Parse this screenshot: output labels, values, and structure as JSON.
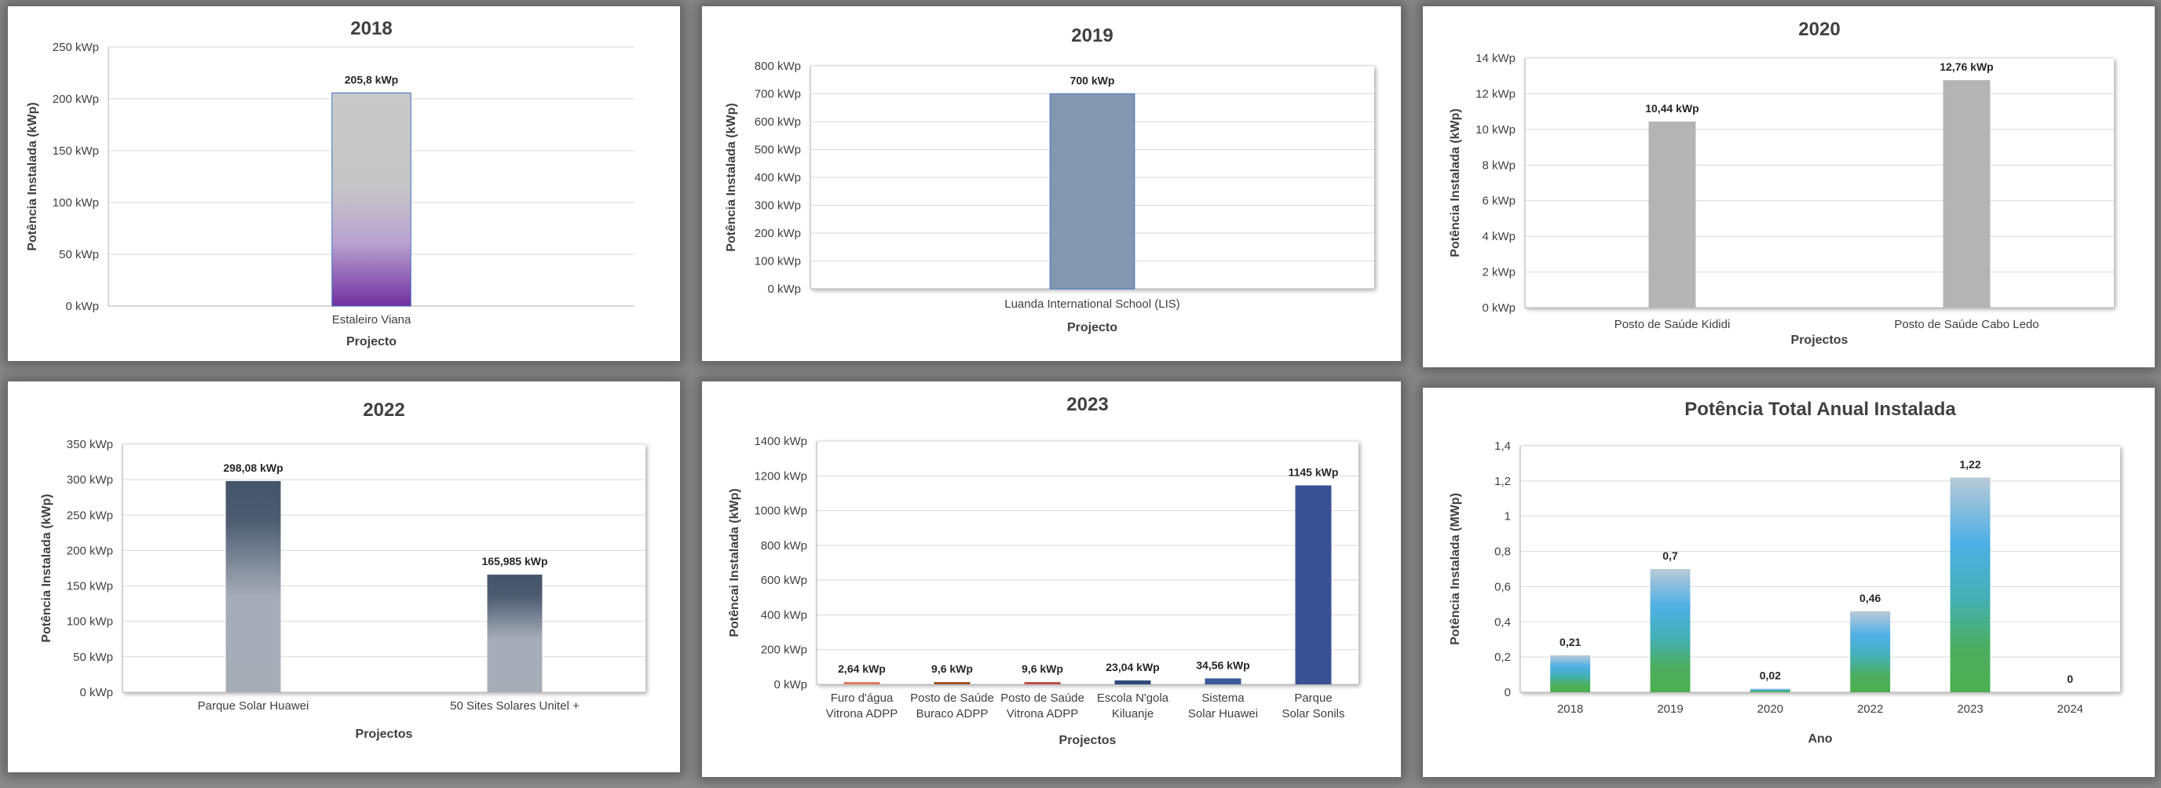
{
  "chart_data": [
    {
      "id": "c2018",
      "type": "bar",
      "title": "2018",
      "xlabel": "Projecto",
      "ylabel": "Potência Instalada (kWp)",
      "categories": [
        "Estaleiro Viana"
      ],
      "values": [
        205.8
      ],
      "value_labels": [
        "205,8 kWp"
      ],
      "ylim": [
        0,
        250
      ],
      "ytick_labels": [
        "0 kWp",
        "50 kWp",
        "100 kWp",
        "150 kWp",
        "200 kWp",
        "250 kWp"
      ],
      "grid": true,
      "plot_frame": false,
      "bar_fill": "grad2018",
      "bar_stroke": "#4472c4"
    },
    {
      "id": "c2019",
      "type": "bar",
      "title": "2019",
      "xlabel": "Projecto",
      "ylabel": "Potência Instalada (kWp)",
      "categories": [
        "Luanda International School (LIS)"
      ],
      "values": [
        700
      ],
      "value_labels": [
        "700 kWp"
      ],
      "ylim": [
        0,
        800
      ],
      "ytick_labels": [
        "0 kWp",
        "100 kWp",
        "200 kWp",
        "300 kWp",
        "400 kWp",
        "500 kWp",
        "600 kWp",
        "700 kWp",
        "800 kWp"
      ],
      "grid": true,
      "plot_frame": true,
      "bar_fill": "#8497b0",
      "bar_stroke": "#4472c4"
    },
    {
      "id": "c2020",
      "type": "bar",
      "title": "2020",
      "xlabel": "Projectos",
      "ylabel": "Potência Instalada (kWp)",
      "categories": [
        "Posto de Saúde Kididi",
        "Posto de Saúde Cabo Ledo"
      ],
      "values": [
        10.44,
        12.76
      ],
      "value_labels": [
        "10,44 kWp",
        "12,76 kWp"
      ],
      "ylim": [
        0,
        14
      ],
      "ytick_labels": [
        "0 kWp",
        "2 kWp",
        "4 kWp",
        "6 kWp",
        "8 kWp",
        "10 kWp",
        "12 kWp",
        "14 kWp"
      ],
      "grid": true,
      "plot_frame": true,
      "bar_fill": "#b4b4b4",
      "bar_stroke": "none"
    },
    {
      "id": "c2022",
      "type": "bar",
      "title": "2022",
      "xlabel": "Projectos",
      "ylabel": "Potência Instalada (kWp)",
      "categories": [
        "Parque Solar Huawei",
        "50 Sites Solares Unitel +"
      ],
      "values": [
        298.08,
        165.985
      ],
      "value_labels": [
        "298,08 kWp",
        "165,985 kWp"
      ],
      "ylim": [
        0,
        350
      ],
      "ytick_labels": [
        "0 kWp",
        "50 kWp",
        "100 kWp",
        "150 kWp",
        "200 kWp",
        "250 kWp",
        "300 kWp",
        "350 kWp"
      ],
      "grid": true,
      "plot_frame": true,
      "bar_fill": "grad2022",
      "bar_stroke": "none"
    },
    {
      "id": "c2023",
      "type": "bar",
      "title": "2023",
      "xlabel": "Projectos",
      "ylabel": "Potêncai Instalada (kWp)",
      "categories": [
        "Furo d'água Vitrona ADPP",
        "Posto de Saúde Buraco ADPP",
        "Posto de Saúde Vitrona ADPP",
        "Escola N'gola Kiluanje",
        "Sistema Solar Huawei",
        "Parque Solar Sonils"
      ],
      "values": [
        2.64,
        9.6,
        9.6,
        23.04,
        34.56,
        1145
      ],
      "value_labels": [
        "2,64 kWp",
        "9,6 kWp",
        "9,6 kWp",
        "23,04 kWp",
        "34,56 kWp",
        "1145 kWp"
      ],
      "ylim": [
        0,
        1400
      ],
      "ytick_labels": [
        "0 kWp",
        "200 kWp",
        "400 kWp",
        "600 kWp",
        "800 kWp",
        "1000 kWp",
        "1200 kWp",
        "1400 kWp"
      ],
      "grid": true,
      "plot_frame": true,
      "bar_fills": [
        "#e07b5f",
        "#a0522d",
        "#c0504d",
        "#2f4b7c",
        "#3a5a9a",
        "#3a5293"
      ],
      "bar_stroke": "none"
    },
    {
      "id": "ctotal",
      "type": "bar",
      "title": "Potência Total Anual Instalada",
      "xlabel": "Ano",
      "ylabel": "Potência Instalada (MWp)",
      "categories": [
        "2018",
        "2019",
        "2020",
        "2022",
        "2023",
        "2024"
      ],
      "values": [
        0.21,
        0.7,
        0.02,
        0.46,
        1.22,
        0
      ],
      "value_labels": [
        "0,21",
        "0,7",
        "0,02",
        "0,46",
        "1,22",
        "0"
      ],
      "ylim": [
        0,
        1.4
      ],
      "ytick_labels": [
        "0",
        "0,2",
        "0,4",
        "0,6",
        "0,8",
        "1",
        "1,2",
        "1,4"
      ],
      "grid": true,
      "plot_frame": true,
      "bar_fill": "gradTotal",
      "bar_stroke": "none"
    }
  ]
}
